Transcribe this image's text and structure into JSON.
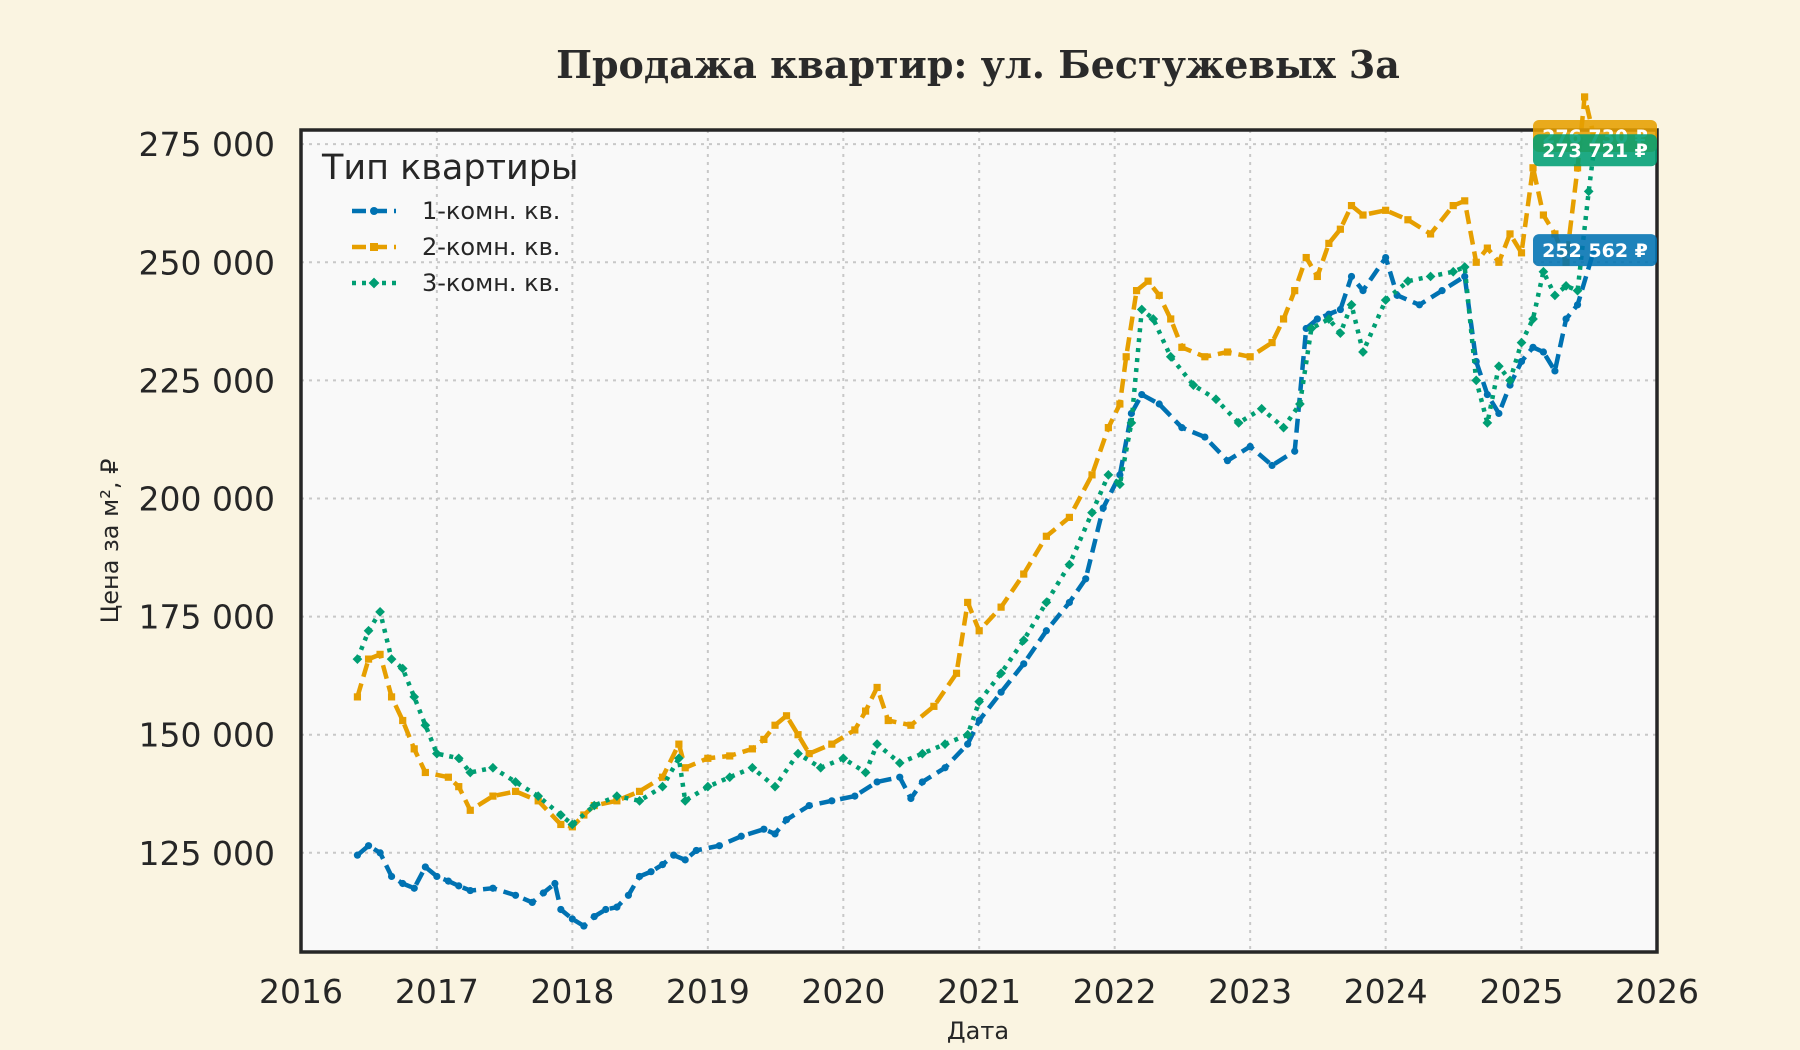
{
  "chart_data": {
    "type": "line",
    "title": "Продажа квартир: ул. Бестужевых 3а",
    "xlabel": "Дата",
    "ylabel": "Цена за м², ₽",
    "xlim": [
      "2016-01-01",
      "2026-01-01"
    ],
    "ylim": [
      104000,
      278000
    ],
    "x_ticks": [
      "2016",
      "2017",
      "2018",
      "2019",
      "2020",
      "2021",
      "2022",
      "2023",
      "2024",
      "2025",
      "2026"
    ],
    "y_ticks": [
      "125 000",
      "150 000",
      "175 000",
      "200 000",
      "225 000",
      "250 000",
      "275 000"
    ],
    "grid": true,
    "legend": {
      "title": "Тип квартиры",
      "placement": "top-left"
    },
    "series": [
      {
        "name": "1-комн. кв.",
        "color": "#0072b2",
        "line_style": "dashed",
        "marker": "circle",
        "end_label": "252 562 ₽",
        "points": [
          [
            "2016-06-01",
            124500
          ],
          [
            "2016-07-01",
            126500
          ],
          [
            "2016-08-01",
            125000
          ],
          [
            "2016-09-01",
            120000
          ],
          [
            "2016-10-01",
            118500
          ],
          [
            "2016-11-01",
            117500
          ],
          [
            "2016-12-01",
            122000
          ],
          [
            "2017-01-01",
            120000
          ],
          [
            "2017-02-01",
            119000
          ],
          [
            "2017-03-01",
            118000
          ],
          [
            "2017-04-01",
            117000
          ],
          [
            "2017-06-01",
            117500
          ],
          [
            "2017-08-01",
            116000
          ],
          [
            "2017-09-15",
            114500
          ],
          [
            "2017-10-15",
            116500
          ],
          [
            "2017-11-15",
            118500
          ],
          [
            "2017-12-01",
            113000
          ],
          [
            "2018-01-01",
            111000
          ],
          [
            "2018-02-01",
            109500
          ],
          [
            "2018-03-01",
            111500
          ],
          [
            "2018-04-01",
            113000
          ],
          [
            "2018-05-01",
            113500
          ],
          [
            "2018-06-01",
            116000
          ],
          [
            "2018-07-01",
            120000
          ],
          [
            "2018-08-01",
            121000
          ],
          [
            "2018-09-01",
            122500
          ],
          [
            "2018-10-01",
            124500
          ],
          [
            "2018-11-01",
            123500
          ],
          [
            "2018-12-01",
            125500
          ],
          [
            "2019-02-01",
            126500
          ],
          [
            "2019-04-01",
            128500
          ],
          [
            "2019-06-01",
            130000
          ],
          [
            "2019-07-01",
            129000
          ],
          [
            "2019-08-01",
            132000
          ],
          [
            "2019-10-01",
            135000
          ],
          [
            "2019-12-01",
            136000
          ],
          [
            "2020-02-01",
            137000
          ],
          [
            "2020-04-01",
            140000
          ],
          [
            "2020-06-01",
            141000
          ],
          [
            "2020-07-01",
            136500
          ],
          [
            "2020-08-01",
            140000
          ],
          [
            "2020-10-01",
            143000
          ],
          [
            "2020-12-01",
            148000
          ],
          [
            "2021-01-01",
            153000
          ],
          [
            "2021-03-01",
            159000
          ],
          [
            "2021-05-01",
            165000
          ],
          [
            "2021-07-01",
            172000
          ],
          [
            "2021-09-01",
            178000
          ],
          [
            "2021-10-15",
            183000
          ],
          [
            "2021-12-01",
            198000
          ],
          [
            "2022-01-15",
            205000
          ],
          [
            "2022-02-15",
            218000
          ],
          [
            "2022-03-15",
            222000
          ],
          [
            "2022-05-01",
            220000
          ],
          [
            "2022-07-01",
            215000
          ],
          [
            "2022-09-01",
            213000
          ],
          [
            "2022-11-01",
            208000
          ],
          [
            "2023-01-01",
            211000
          ],
          [
            "2023-03-01",
            207000
          ],
          [
            "2023-05-01",
            210000
          ],
          [
            "2023-06-01",
            236000
          ],
          [
            "2023-07-01",
            238000
          ],
          [
            "2023-08-01",
            239000
          ],
          [
            "2023-09-01",
            240000
          ],
          [
            "2023-10-01",
            247000
          ],
          [
            "2023-11-01",
            244000
          ],
          [
            "2024-01-01",
            251000
          ],
          [
            "2024-02-01",
            243000
          ],
          [
            "2024-04-01",
            241000
          ],
          [
            "2024-06-01",
            244000
          ],
          [
            "2024-08-01",
            247000
          ],
          [
            "2024-09-01",
            229000
          ],
          [
            "2024-10-01",
            222000
          ],
          [
            "2024-11-01",
            218000
          ],
          [
            "2024-12-01",
            224000
          ],
          [
            "2025-01-01",
            229000
          ],
          [
            "2025-02-01",
            232000
          ],
          [
            "2025-03-01",
            231000
          ],
          [
            "2025-04-01",
            227000
          ],
          [
            "2025-05-01",
            238000
          ],
          [
            "2025-06-01",
            241000
          ],
          [
            "2025-07-15",
            252562
          ]
        ]
      },
      {
        "name": "2-комн. кв.",
        "color": "#e69f00",
        "line_style": "dashed",
        "marker": "square",
        "end_label": "276 730 ₽",
        "points": [
          [
            "2016-06-01",
            158000
          ],
          [
            "2016-07-01",
            166000
          ],
          [
            "2016-08-01",
            167000
          ],
          [
            "2016-09-01",
            158000
          ],
          [
            "2016-10-01",
            153000
          ],
          [
            "2016-11-01",
            147000
          ],
          [
            "2016-12-01",
            142000
          ],
          [
            "2017-02-01",
            141000
          ],
          [
            "2017-03-01",
            139000
          ],
          [
            "2017-04-01",
            134000
          ],
          [
            "2017-06-01",
            137000
          ],
          [
            "2017-08-01",
            138000
          ],
          [
            "2017-10-01",
            136000
          ],
          [
            "2017-12-01",
            131000
          ],
          [
            "2018-01-01",
            130500
          ],
          [
            "2018-02-01",
            133000
          ],
          [
            "2018-03-01",
            135000
          ],
          [
            "2018-05-01",
            136000
          ],
          [
            "2018-07-01",
            138000
          ],
          [
            "2018-09-01",
            141000
          ],
          [
            "2018-10-15",
            148000
          ],
          [
            "2018-11-01",
            143000
          ],
          [
            "2019-01-01",
            145000
          ],
          [
            "2019-03-01",
            145500
          ],
          [
            "2019-05-01",
            147000
          ],
          [
            "2019-06-01",
            149000
          ],
          [
            "2019-07-01",
            152000
          ],
          [
            "2019-08-01",
            154000
          ],
          [
            "2019-09-01",
            150000
          ],
          [
            "2019-10-01",
            146000
          ],
          [
            "2019-12-01",
            148000
          ],
          [
            "2020-02-01",
            151000
          ],
          [
            "2020-03-01",
            155000
          ],
          [
            "2020-04-01",
            160000
          ],
          [
            "2020-05-01",
            153000
          ],
          [
            "2020-07-01",
            152000
          ],
          [
            "2020-09-01",
            156000
          ],
          [
            "2020-11-01",
            163000
          ],
          [
            "2020-12-01",
            178000
          ],
          [
            "2021-01-01",
            172000
          ],
          [
            "2021-03-01",
            177000
          ],
          [
            "2021-05-01",
            184000
          ],
          [
            "2021-07-01",
            192000
          ],
          [
            "2021-09-01",
            196000
          ],
          [
            "2021-11-01",
            205000
          ],
          [
            "2021-12-15",
            215000
          ],
          [
            "2022-01-15",
            220000
          ],
          [
            "2022-02-01",
            230000
          ],
          [
            "2022-03-01",
            244000
          ],
          [
            "2022-04-01",
            246000
          ],
          [
            "2022-05-01",
            243000
          ],
          [
            "2022-06-01",
            238000
          ],
          [
            "2022-07-01",
            232000
          ],
          [
            "2022-09-01",
            230000
          ],
          [
            "2022-11-01",
            231000
          ],
          [
            "2023-01-01",
            230000
          ],
          [
            "2023-03-01",
            233000
          ],
          [
            "2023-04-01",
            238000
          ],
          [
            "2023-05-01",
            244000
          ],
          [
            "2023-06-01",
            251000
          ],
          [
            "2023-07-01",
            247000
          ],
          [
            "2023-08-01",
            254000
          ],
          [
            "2023-09-01",
            257000
          ],
          [
            "2023-10-01",
            262000
          ],
          [
            "2023-11-01",
            260000
          ],
          [
            "2024-01-01",
            261000
          ],
          [
            "2024-03-01",
            259000
          ],
          [
            "2024-05-01",
            256000
          ],
          [
            "2024-07-01",
            262000
          ],
          [
            "2024-08-01",
            263000
          ],
          [
            "2024-09-01",
            250000
          ],
          [
            "2024-10-01",
            253000
          ],
          [
            "2024-11-01",
            250000
          ],
          [
            "2024-12-01",
            256000
          ],
          [
            "2025-01-01",
            252000
          ],
          [
            "2025-02-01",
            270000
          ],
          [
            "2025-03-01",
            260000
          ],
          [
            "2025-04-01",
            256000
          ],
          [
            "2025-05-01",
            250000
          ],
          [
            "2025-06-01",
            270000
          ],
          [
            "2025-06-20",
            285000
          ],
          [
            "2025-07-15",
            276730
          ]
        ]
      },
      {
        "name": "3-комн. кв.",
        "color": "#009e73",
        "line_style": "dotted",
        "marker": "diamond",
        "end_label": "273 721 ₽",
        "points": [
          [
            "2016-06-01",
            166000
          ],
          [
            "2016-07-01",
            172000
          ],
          [
            "2016-08-01",
            176000
          ],
          [
            "2016-09-01",
            166000
          ],
          [
            "2016-10-01",
            164000
          ],
          [
            "2016-11-01",
            158000
          ],
          [
            "2016-12-01",
            152000
          ],
          [
            "2017-01-01",
            146000
          ],
          [
            "2017-03-01",
            145000
          ],
          [
            "2017-04-01",
            142000
          ],
          [
            "2017-06-01",
            143000
          ],
          [
            "2017-08-01",
            140000
          ],
          [
            "2017-10-01",
            137000
          ],
          [
            "2017-12-01",
            133000
          ],
          [
            "2018-01-01",
            131000
          ],
          [
            "2018-03-01",
            135000
          ],
          [
            "2018-05-01",
            137000
          ],
          [
            "2018-07-01",
            136000
          ],
          [
            "2018-09-01",
            139000
          ],
          [
            "2018-10-15",
            145000
          ],
          [
            "2018-11-01",
            136000
          ],
          [
            "2019-01-01",
            139000
          ],
          [
            "2019-03-01",
            141000
          ],
          [
            "2019-05-01",
            143000
          ],
          [
            "2019-07-01",
            139000
          ],
          [
            "2019-09-01",
            146000
          ],
          [
            "2019-11-01",
            143000
          ],
          [
            "2020-01-01",
            145000
          ],
          [
            "2020-03-01",
            142000
          ],
          [
            "2020-04-01",
            148000
          ],
          [
            "2020-06-01",
            144000
          ],
          [
            "2020-08-01",
            146000
          ],
          [
            "2020-10-01",
            148000
          ],
          [
            "2020-12-01",
            150000
          ],
          [
            "2021-01-01",
            157000
          ],
          [
            "2021-03-01",
            163000
          ],
          [
            "2021-05-01",
            170000
          ],
          [
            "2021-07-01",
            178000
          ],
          [
            "2021-09-01",
            186000
          ],
          [
            "2021-11-01",
            197000
          ],
          [
            "2021-12-15",
            205000
          ],
          [
            "2022-01-15",
            203000
          ],
          [
            "2022-02-15",
            216000
          ],
          [
            "2022-03-15",
            240000
          ],
          [
            "2022-04-15",
            238000
          ],
          [
            "2022-06-01",
            230000
          ],
          [
            "2022-08-01",
            224000
          ],
          [
            "2022-10-01",
            221000
          ],
          [
            "2022-12-01",
            216000
          ],
          [
            "2023-02-01",
            219000
          ],
          [
            "2023-04-01",
            215000
          ],
          [
            "2023-05-15",
            220000
          ],
          [
            "2023-06-15",
            236000
          ],
          [
            "2023-08-01",
            238000
          ],
          [
            "2023-09-01",
            235000
          ],
          [
            "2023-10-01",
            241000
          ],
          [
            "2023-11-01",
            231000
          ],
          [
            "2024-01-01",
            242000
          ],
          [
            "2024-03-01",
            246000
          ],
          [
            "2024-05-01",
            247000
          ],
          [
            "2024-07-01",
            248000
          ],
          [
            "2024-08-01",
            249000
          ],
          [
            "2024-09-01",
            225000
          ],
          [
            "2024-10-01",
            216000
          ],
          [
            "2024-11-01",
            228000
          ],
          [
            "2024-12-01",
            225000
          ],
          [
            "2025-01-01",
            233000
          ],
          [
            "2025-02-01",
            238000
          ],
          [
            "2025-03-01",
            248000
          ],
          [
            "2025-04-01",
            243000
          ],
          [
            "2025-05-01",
            245000
          ],
          [
            "2025-06-01",
            244000
          ],
          [
            "2025-07-01",
            265000
          ],
          [
            "2025-07-15",
            273721
          ]
        ]
      }
    ]
  }
}
